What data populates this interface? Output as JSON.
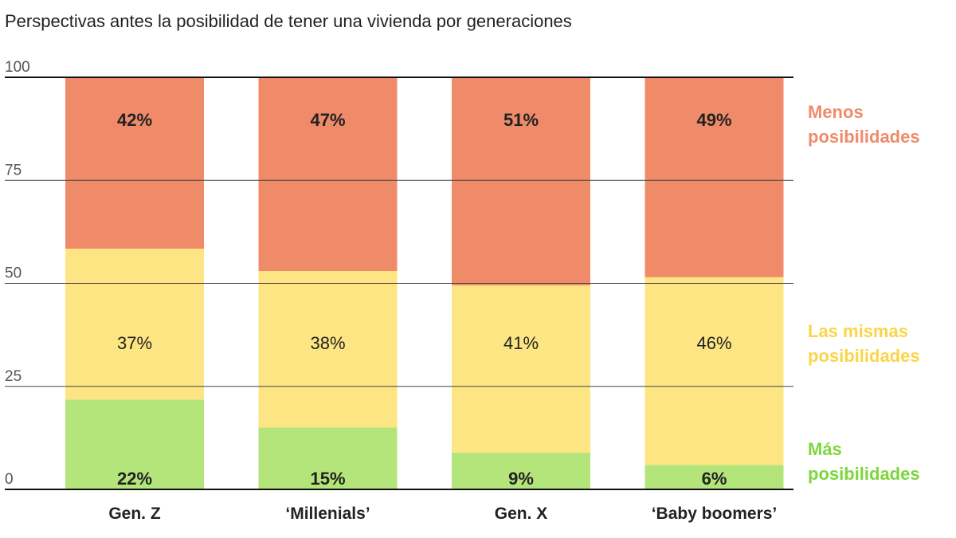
{
  "title": "Perspectivas antes la posibilidad de tener una vivienda por generaciones",
  "chart_data": {
    "type": "bar",
    "stacked": true,
    "title": "Perspectivas antes la posibilidad de tener una vivienda por generaciones",
    "categories": [
      "Gen. Z",
      "‘Millenials’",
      "Gen. X",
      "‘Baby boomers’"
    ],
    "series": [
      {
        "name": "Más posibilidades",
        "values": [
          22,
          15,
          9,
          6
        ],
        "labels": [
          "22%",
          "15%",
          "9%",
          "6%"
        ],
        "color": "#b3e57a",
        "label_bold": true
      },
      {
        "name": "Las mismas posibilidades",
        "values": [
          37,
          38,
          41,
          46
        ],
        "labels": [
          "37%",
          "38%",
          "41%",
          "46%"
        ],
        "color": "#fde583",
        "label_bold": false
      },
      {
        "name": "Menos posibilidades",
        "values": [
          42,
          47,
          51,
          49
        ],
        "labels": [
          "42%",
          "47%",
          "51%",
          "49%"
        ],
        "color": "#f08b6a",
        "label_bold": true
      }
    ],
    "legend": [
      {
        "lines": [
          "Menos",
          "posibilidades"
        ],
        "color": "#f08b6a",
        "series": 2
      },
      {
        "lines": [
          "Las mismas",
          "posibilidades"
        ],
        "color": "#fad54a",
        "series": 1
      },
      {
        "lines": [
          "Más",
          "posibilidades"
        ],
        "color": "#7dd63c",
        "series": 0
      }
    ],
    "legend_position": "right",
    "yticks": [
      "0",
      "25",
      "50",
      "75",
      "100"
    ],
    "ylim": [
      0,
      100
    ],
    "grid": true
  }
}
